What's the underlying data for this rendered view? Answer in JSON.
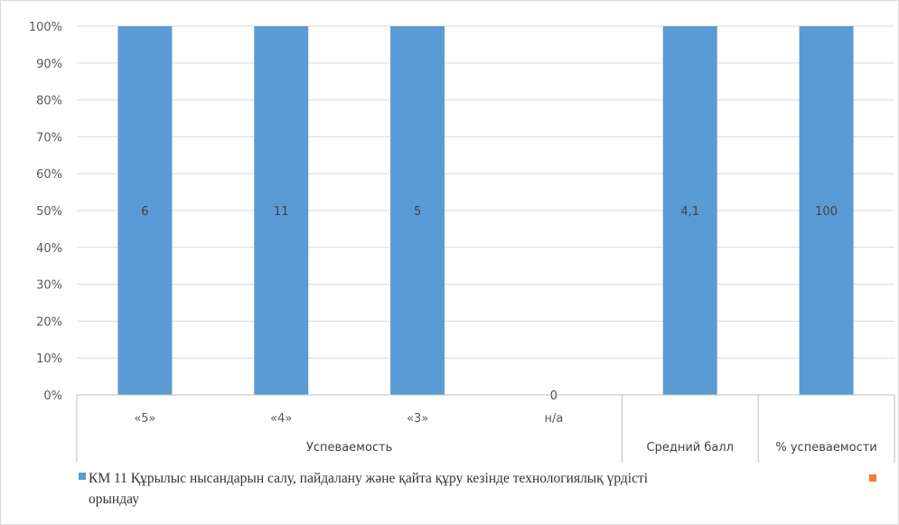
{
  "colors": {
    "series1": "#5b9bd5",
    "series2": "#ed7d31",
    "grid": "#d9d9d9",
    "axis": "#bfbfbf"
  },
  "chart_data": {
    "type": "bar",
    "stacked": "percent",
    "ylim": [
      0,
      100
    ],
    "yticks": [
      "0%",
      "10%",
      "20%",
      "30%",
      "40%",
      "50%",
      "60%",
      "70%",
      "80%",
      "90%",
      "100%"
    ],
    "categories": [
      "«5»",
      "«4»",
      "«3»",
      "н/а",
      "",
      ""
    ],
    "groups": [
      {
        "label": "Успеваемость",
        "span": 4
      },
      {
        "label": "Средний балл",
        "span": 1
      },
      {
        "label": "% успеваемости",
        "span": 1
      }
    ],
    "series": [
      {
        "name": "КМ 11 Құрылыс нысандарын салу, пайдалану және қайта құру кезінде технологиялық үрдісті орындау",
        "values": [
          6,
          11,
          5,
          0,
          4.1,
          100
        ],
        "labels": [
          "6",
          "11",
          "5",
          "0",
          "4,1",
          "100"
        ]
      },
      {
        "name": "",
        "values": [
          0,
          0,
          0,
          0,
          0,
          0
        ]
      }
    ],
    "grid": true,
    "legend_position": "bottom",
    "legend": {
      "line1": "КМ 11 Құрылыс нысандарын салу, пайдалану және қайта құру кезінде технологиялық үрдісті",
      "line2": "орындау"
    }
  }
}
